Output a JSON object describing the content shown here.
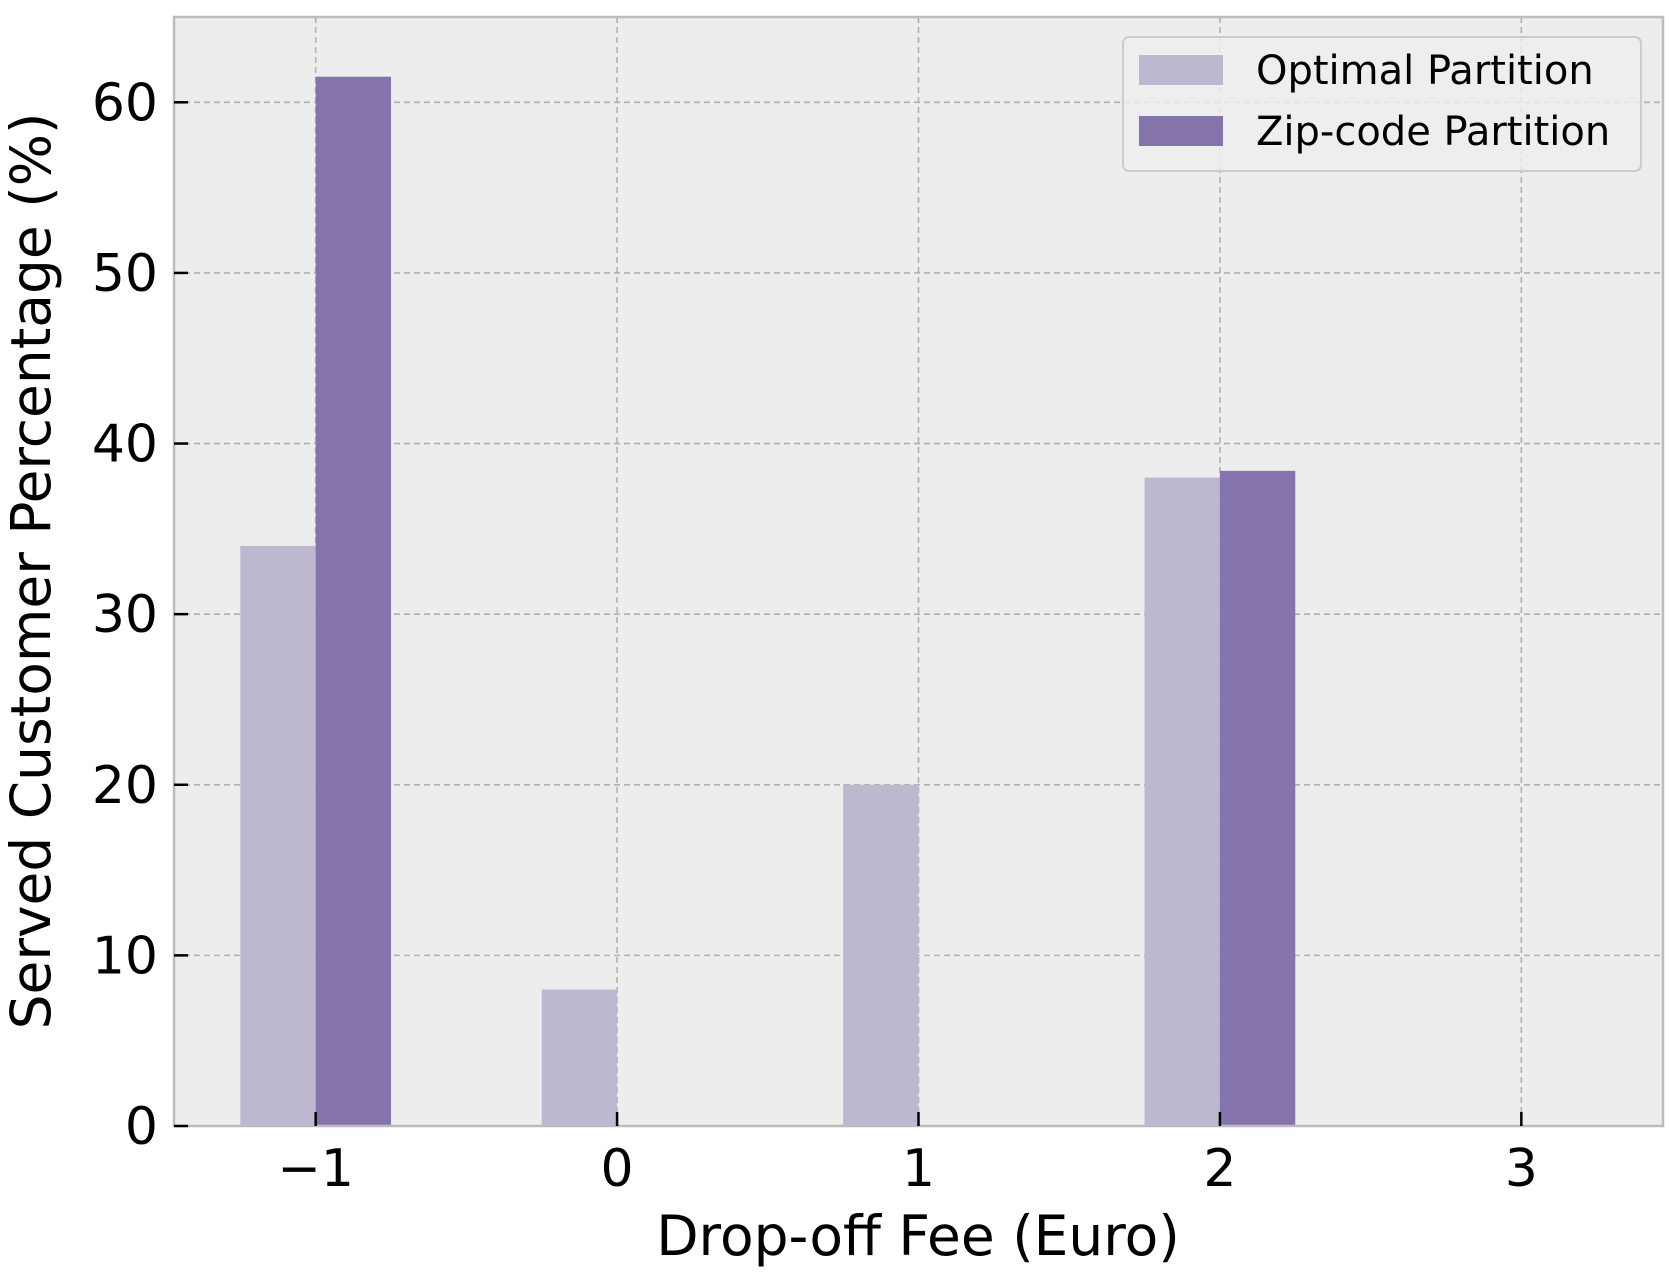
{
  "chart_data": {
    "type": "bar",
    "xlabel": "Drop-off Fee (Euro)",
    "ylabel": "Served Customer Percentage (%)",
    "x_ticks": [
      -1,
      0,
      1,
      2,
      3
    ],
    "x_tick_labels": [
      "−1",
      "0",
      "1",
      "2",
      "3"
    ],
    "y_ticks": [
      0,
      10,
      20,
      30,
      40,
      50,
      60
    ],
    "y_tick_labels": [
      "0",
      "10",
      "20",
      "30",
      "40",
      "50",
      "60"
    ],
    "xlim": [
      -1.47,
      3.47
    ],
    "ylim": [
      0,
      65
    ],
    "grid": true,
    "legend_position": "top-right",
    "series": [
      {
        "name": "Optimal Partition",
        "color": "#bdb7cf",
        "x": [
          -1,
          0,
          1,
          2
        ],
        "values": [
          34.0,
          8.0,
          20.0,
          38.0
        ]
      },
      {
        "name": "Zip-code Partition",
        "color": "#8474ab",
        "x": [
          -1,
          2
        ],
        "values": [
          61.5,
          38.4
        ]
      }
    ],
    "background_color": "#ededed"
  }
}
